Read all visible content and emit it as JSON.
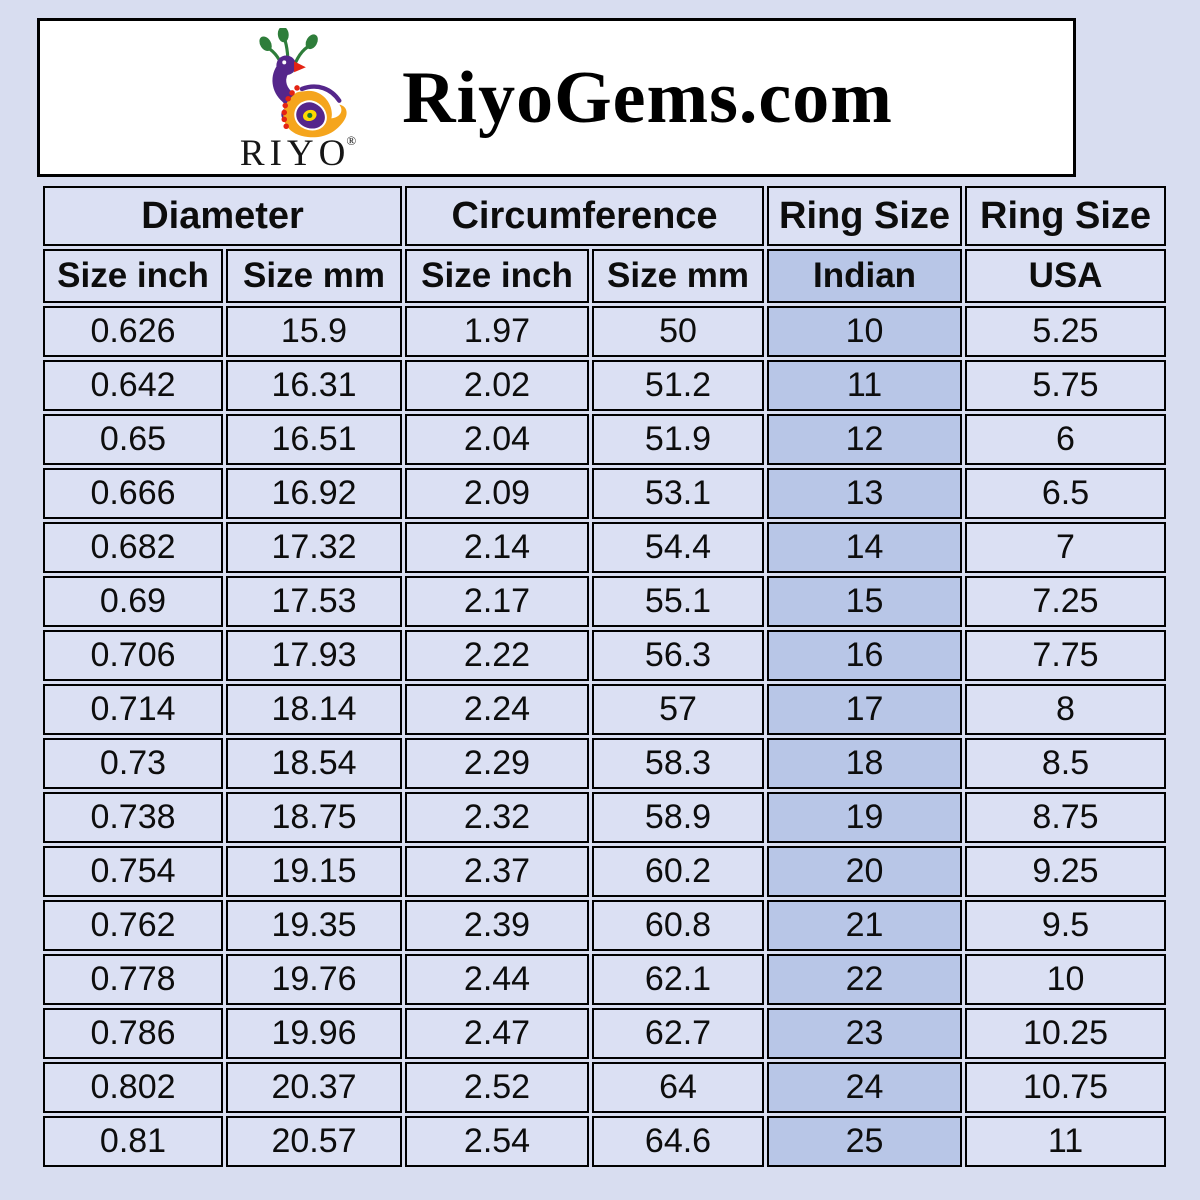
{
  "page": {
    "background_color": "#d8ddf0"
  },
  "brand": {
    "title": "RiyoGems.com",
    "logo_text": "RIYO",
    "registered_mark": "®",
    "logo_colors": {
      "purple": "#55268b",
      "green": "#2e7d3a",
      "orange": "#f5a51d",
      "red": "#e42313",
      "eye_yellow": "#ffd900"
    }
  },
  "table": {
    "group_headers": [
      {
        "label": "Diameter",
        "colspan": 2
      },
      {
        "label": "Circumference",
        "colspan": 2
      },
      {
        "label": "Ring Size",
        "colspan": 1
      },
      {
        "label": "Ring Size",
        "colspan": 1
      }
    ],
    "column_headers": [
      "Size inch",
      "Size mm",
      "Size inch",
      "Size mm",
      "Indian",
      "USA"
    ],
    "highlight_column_index": 4,
    "colors": {
      "cell_background": "#dbe0f3",
      "highlight_background": "#b8c6e7",
      "border": "#000000",
      "text": "#0d0d0d"
    },
    "rows": [
      [
        "0.626",
        "15.9",
        "1.97",
        "50",
        "10",
        "5.25"
      ],
      [
        "0.642",
        "16.31",
        "2.02",
        "51.2",
        "11",
        "5.75"
      ],
      [
        "0.65",
        "16.51",
        "2.04",
        "51.9",
        "12",
        "6"
      ],
      [
        "0.666",
        "16.92",
        "2.09",
        "53.1",
        "13",
        "6.5"
      ],
      [
        "0.682",
        "17.32",
        "2.14",
        "54.4",
        "14",
        "7"
      ],
      [
        "0.69",
        "17.53",
        "2.17",
        "55.1",
        "15",
        "7.25"
      ],
      [
        "0.706",
        "17.93",
        "2.22",
        "56.3",
        "16",
        "7.75"
      ],
      [
        "0.714",
        "18.14",
        "2.24",
        "57",
        "17",
        "8"
      ],
      [
        "0.73",
        "18.54",
        "2.29",
        "58.3",
        "18",
        "8.5"
      ],
      [
        "0.738",
        "18.75",
        "2.32",
        "58.9",
        "19",
        "8.75"
      ],
      [
        "0.754",
        "19.15",
        "2.37",
        "60.2",
        "20",
        "9.25"
      ],
      [
        "0.762",
        "19.35",
        "2.39",
        "60.8",
        "21",
        "9.5"
      ],
      [
        "0.778",
        "19.76",
        "2.44",
        "62.1",
        "22",
        "10"
      ],
      [
        "0.786",
        "19.96",
        "2.47",
        "62.7",
        "23",
        "10.25"
      ],
      [
        "0.802",
        "20.37",
        "2.52",
        "64",
        "24",
        "10.75"
      ],
      [
        "0.81",
        "20.57",
        "2.54",
        "64.6",
        "25",
        "11"
      ]
    ]
  }
}
